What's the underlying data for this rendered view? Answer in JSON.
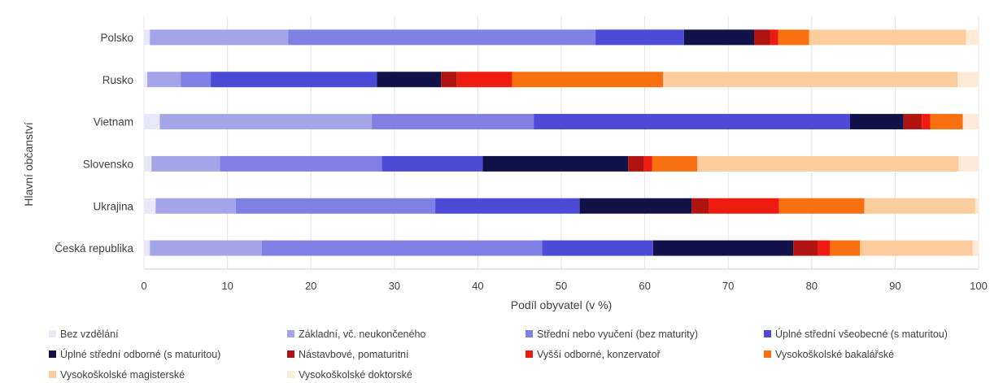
{
  "chart_data": {
    "type": "bar",
    "orientation": "horizontal",
    "stacked": true,
    "xlabel": "Podíl obyvatel (v %)",
    "ylabel": "Hlavní občanství",
    "xlim": [
      0,
      100
    ],
    "xticks": [
      "0",
      "10",
      "20",
      "30",
      "40",
      "50",
      "60",
      "70",
      "80",
      "90",
      "100"
    ],
    "grid": true,
    "legend_position": "bottom",
    "categories": [
      "Polsko",
      "Rusko",
      "Vietnam",
      "Slovensko",
      "Ukrajina",
      "Česká republika"
    ],
    "series": [
      {
        "name": "Bez vzdělání",
        "color": "#e8e8f8",
        "values": [
          0.7,
          0.4,
          1.9,
          0.9,
          1.4,
          0.7
        ]
      },
      {
        "name": "Základní, vč. neukončeného",
        "color": "#a4a4e8",
        "values": [
          16.6,
          4.0,
          25.4,
          8.2,
          9.6,
          13.4
        ]
      },
      {
        "name": "Střední nebo vyučení (bez maturity)",
        "color": "#8080e4",
        "values": [
          36.8,
          3.6,
          19.4,
          19.4,
          23.9,
          33.6
        ]
      },
      {
        "name": "Úplné střední všeobecné (s maturitou)",
        "color": "#4b4bd8",
        "values": [
          10.6,
          19.9,
          37.9,
          12.1,
          17.3,
          13.3
        ]
      },
      {
        "name": "Úplné střední odborné (s maturitou)",
        "color": "#12124a",
        "values": [
          8.4,
          7.7,
          6.4,
          17.4,
          13.4,
          16.8
        ]
      },
      {
        "name": "Nástavbové, pomaturitní",
        "color": "#b01410",
        "values": [
          1.9,
          1.9,
          2.2,
          1.9,
          2.1,
          2.9
        ]
      },
      {
        "name": "Vyšší odborné, konzervatoř",
        "color": "#ee1c10",
        "values": [
          1.0,
          6.6,
          1.0,
          1.0,
          8.4,
          1.5
        ]
      },
      {
        "name": "Vysokoškolské bakalářské",
        "color": "#f87010",
        "values": [
          3.7,
          18.1,
          3.9,
          5.4,
          10.2,
          3.6
        ]
      },
      {
        "name": "Vysokoškolské magisterské",
        "color": "#fccc9c",
        "values": [
          18.8,
          35.3,
          0.0,
          31.3,
          13.3,
          13.5
        ]
      },
      {
        "name": "Vysokoškolské doktorské",
        "color": "#fdebd8",
        "values": [
          1.5,
          2.5,
          1.9,
          2.4,
          0.4,
          0.7
        ]
      }
    ]
  }
}
